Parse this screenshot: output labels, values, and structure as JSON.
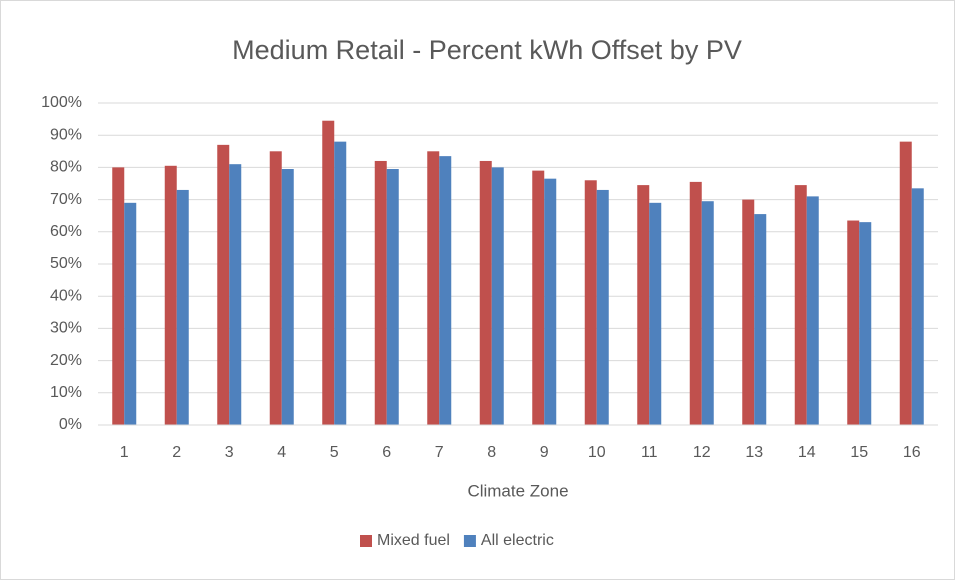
{
  "chart_data": {
    "type": "bar",
    "title": "Medium Retail - Percent kWh Offset by PV",
    "x_label": "Climate Zone",
    "categories": [
      "1",
      "2",
      "3",
      "4",
      "5",
      "6",
      "7",
      "8",
      "9",
      "10",
      "11",
      "12",
      "13",
      "14",
      "15",
      "16"
    ],
    "series": [
      {
        "name": "Mixed fuel",
        "color": "#c0504d",
        "values": [
          80,
          80.5,
          87,
          85,
          94.5,
          82,
          85,
          82,
          79,
          76,
          74.5,
          75.5,
          70,
          74.5,
          63.5,
          88
        ]
      },
      {
        "name": "All electric",
        "color": "#4f81bd",
        "values": [
          69,
          73,
          81,
          79.5,
          88,
          79.5,
          83.5,
          80,
          76.5,
          73,
          69,
          69.5,
          65.5,
          71,
          63,
          73.5
        ]
      }
    ],
    "ylim": [
      0,
      100
    ],
    "yticks": [
      {
        "value": 0,
        "label": "0%"
      },
      {
        "value": 10,
        "label": "10%"
      },
      {
        "value": 20,
        "label": "20%"
      },
      {
        "value": 30,
        "label": "30%"
      },
      {
        "value": 40,
        "label": "40%"
      },
      {
        "value": 50,
        "label": "50%"
      },
      {
        "value": 60,
        "label": "60%"
      },
      {
        "value": 70,
        "label": "70%"
      },
      {
        "value": 80,
        "label": "80%"
      },
      {
        "value": 90,
        "label": "90%"
      },
      {
        "value": 100,
        "label": "100%"
      }
    ],
    "grid": true,
    "legend": "bottom"
  }
}
